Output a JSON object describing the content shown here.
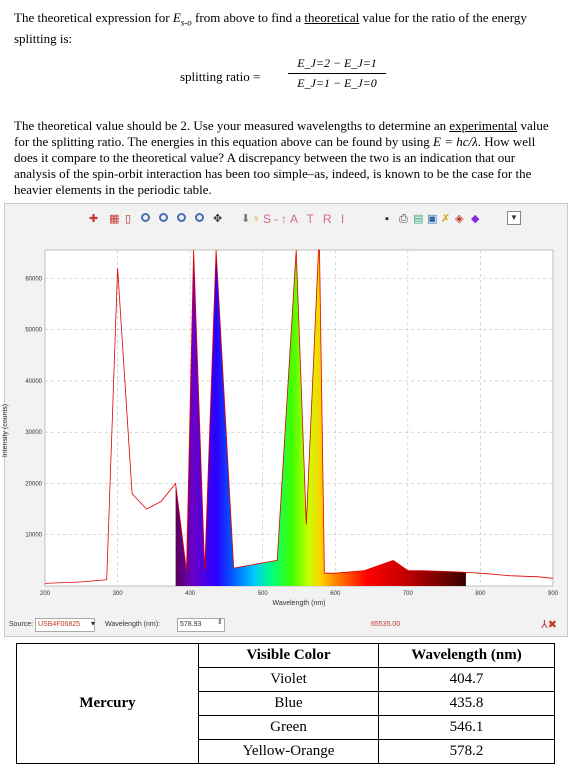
{
  "intro": {
    "text_a": "The theoretical expression for ",
    "symbol": "E",
    "subscript": "s-o",
    "text_b": " from above to find a ",
    "underlined": "theoretical",
    "text_c": " value for the ratio of the energy splitting is:"
  },
  "formula": {
    "lhs": "splitting ratio  =",
    "numerator": "E_J=2 − E_J=1",
    "denominator": "E_J=1 − E_J=0"
  },
  "instruction": {
    "text_a": "The theoretical value should be 2.  Use your measured wavelengths to determine an ",
    "underlined": "experimental",
    "text_b": " value for the splitting ratio. The energies in this equation above can be found by using ",
    "equation": "E = hc/λ",
    "text_c": ". How well does it compare to the theoretical value? A discrepancy between the two is an indication that our analysis of the spin-orbit interaction has been too simple–as, indeed, is known to be the case for the heavier elements in the periodic table."
  },
  "toolbar": {
    "letters": "S-↑A T R I"
  },
  "chart_data": {
    "type": "line",
    "title": "",
    "xlabel": "Wavelength (nm)",
    "ylabel": "Intensity (counts)",
    "xlim": [
      200,
      900
    ],
    "ylim": [
      0,
      65535
    ],
    "x_ticks": [
      200,
      300,
      400,
      500,
      600,
      700,
      800,
      900
    ],
    "y_ticks": [
      10000,
      20000,
      30000,
      40000,
      50000,
      60000
    ],
    "grid": true,
    "series": [
      {
        "name": "",
        "x": [
          200,
          250,
          285,
          300,
          320,
          340,
          360,
          380,
          395,
          404.7,
          420,
          435.8,
          460,
          480,
          500,
          520,
          546.1,
          560,
          576.9,
          578.2,
          585,
          600,
          640,
          680,
          700,
          720,
          760,
          800,
          840,
          880,
          900
        ],
        "y": [
          500,
          800,
          1200,
          62000,
          18000,
          15000,
          16500,
          20000,
          3000,
          65535,
          3000,
          65535,
          3500,
          4000,
          4500,
          5000,
          65535,
          12000,
          65535,
          65535,
          2500,
          2500,
          3000,
          5000,
          3000,
          3000,
          2800,
          2500,
          2000,
          1800,
          1500
        ]
      }
    ]
  },
  "statusbar": {
    "source_label": "Source:",
    "source_value": "USB4F06825",
    "wavelength_label": "Wavelength (nm):",
    "wavelength_value": "578.93",
    "max_counts": "65535.00"
  },
  "table": {
    "element": "Mercury",
    "headers": [
      "Visible Color",
      "Wavelength (nm)"
    ],
    "rows": [
      {
        "color": "Violet",
        "wavelength": "404.7"
      },
      {
        "color": "Blue",
        "wavelength": "435.8"
      },
      {
        "color": "Green",
        "wavelength": "546.1"
      },
      {
        "color": "Yellow-Orange",
        "wavelength": "578.2"
      }
    ]
  }
}
